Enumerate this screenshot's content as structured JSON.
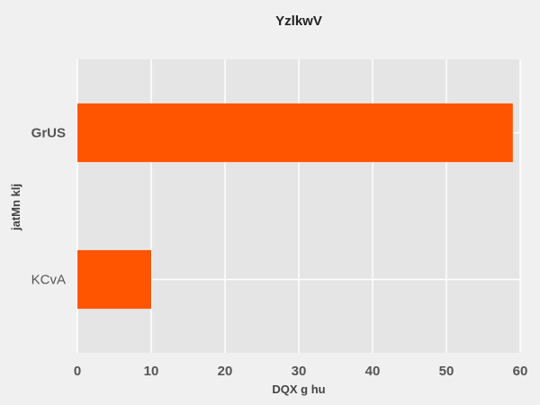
{
  "chart_data": {
    "type": "bar",
    "orientation": "horizontal",
    "title": "YzlkwV",
    "xlabel": "DQX g hu",
    "ylabel": "jatMn klj",
    "categories": [
      "GrUS",
      "KCvA"
    ],
    "values": [
      59,
      10
    ],
    "xlim": [
      0,
      60
    ],
    "xticks": [
      "0",
      "10",
      "20",
      "30",
      "40",
      "50",
      "60"
    ],
    "grid": true,
    "bar_color": "#ff5500",
    "plot_background": "#e5e5e5",
    "grid_color": "#ffffff"
  }
}
